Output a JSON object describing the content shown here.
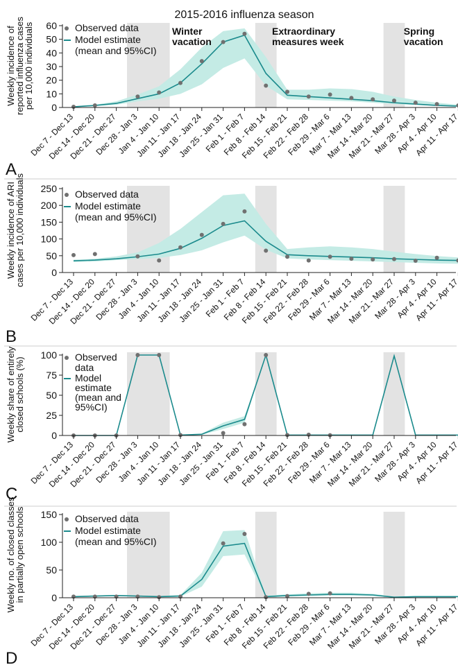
{
  "figure": {
    "title": "2015-2016 influenza season",
    "annotations": [
      {
        "lines": [
          "Winter",
          "vacation"
        ],
        "x_week": 5
      },
      {
        "lines": [
          "Extraordinary",
          "measures week"
        ],
        "x_week": 10
      },
      {
        "lines": [
          "Spring",
          "vacation"
        ],
        "x_week": 16
      }
    ],
    "shaded_weeks": [
      [
        3,
        4
      ],
      [
        9
      ],
      [
        15
      ]
    ],
    "colors": {
      "line": "#1a8a8c",
      "band": "#c4ebe5",
      "dots": "#707070",
      "shade": "#e3e3e3",
      "axis": "#222222",
      "divider": "#cccccc"
    }
  },
  "chart_data": [
    {
      "panel": "A",
      "type": "line",
      "ylabel": [
        "Weekly incidence of",
        "reported influenza cases",
        "per 10,000 individuals"
      ],
      "ylim": [
        0,
        60
      ],
      "yticks": [
        0,
        10,
        20,
        30,
        40,
        50,
        60
      ],
      "categories": [
        "Dec 7 - Dec 13",
        "Dec 14 - Dec 20",
        "Dec 21 - Dec 27",
        "Dec 28 - Jan 3",
        "Jan 4 - Jan 10",
        "Jan 11 - Jan 17",
        "Jan 18 - Jan 24",
        "Jan 25 - Jan 31",
        "Feb 1 - Feb 7",
        "Feb 8 - Feb 14",
        "Feb 15 - Feb 21",
        "Feb 22 - Feb 28",
        "Feb 29 - Mar 6",
        "Mar 7 - Mar 13",
        "Mar 14 - Mar 20",
        "Mar 21 - Mar 27",
        "Mar 28 - Apr 3",
        "Apr 4 - Apr 10",
        "Apr 11 - Apr 17"
      ],
      "observed": [
        0.5,
        1.5,
        null,
        8,
        11,
        18,
        34,
        48,
        54,
        16,
        11.5,
        8,
        9.5,
        7,
        6,
        5,
        3.5,
        2.5,
        1.5
      ],
      "model_mean": [
        0.5,
        1.5,
        3,
        6.5,
        10,
        18,
        32,
        48,
        53,
        25,
        9,
        8,
        7,
        6,
        5,
        3.5,
        2.5,
        1.5,
        1
      ],
      "ci_low": [
        0.3,
        1.0,
        2.0,
        4.5,
        6.5,
        10,
        17,
        29,
        36,
        16,
        6,
        5.5,
        5,
        4.5,
        3.5,
        2.5,
        1.8,
        1.2,
        0.7
      ],
      "ci_high": [
        0.8,
        2.0,
        4.5,
        9.5,
        15.5,
        28,
        44,
        56,
        58,
        37,
        13,
        13,
        14,
        13.5,
        11.5,
        8,
        5.5,
        3.5,
        2
      ],
      "legend": {
        "observed": [
          "Observed data"
        ],
        "model": [
          "Model estimate",
          "(mean and 95%CI)"
        ]
      }
    },
    {
      "panel": "B",
      "type": "line",
      "ylabel": [
        "Weekly incidence of ARI",
        "cases per 10,000 individuals"
      ],
      "ylim": [
        0,
        250
      ],
      "yticks": [
        0,
        50,
        100,
        150,
        200,
        250
      ],
      "categories": [
        "Dec 7 - Dec 13",
        "Dec 14 - Dec 20",
        "Dec 21 - Dec 27",
        "Dec 28 - Jan 3",
        "Jan 4 - Jan 10",
        "Jan 11 - Jan 17",
        "Jan 18 - Jan 24",
        "Jan 25 - Jan 31",
        "Feb 1 - Feb 7",
        "Feb 8 - Feb 14",
        "Feb 15 - Feb 21",
        "Feb 22 - Feb 28",
        "Feb 29 - Mar 6",
        "Mar 7 - Mar 13",
        "Mar 14 - Mar 20",
        "Mar 21 - Mar 27",
        "Mar 28 - Apr 3",
        "Apr 4 - Apr 10",
        "Apr 11 - Apr 17"
      ],
      "observed": [
        52,
        55,
        null,
        48,
        36,
        75,
        112,
        145,
        182,
        65,
        47,
        36,
        47,
        41,
        39,
        40,
        35,
        44,
        36
      ],
      "model_mean": [
        35,
        37,
        41,
        47,
        55,
        72,
        102,
        140,
        154,
        93,
        53,
        50,
        48,
        46,
        44,
        41,
        39,
        37,
        36
      ],
      "ci_low": [
        31,
        33,
        37,
        40,
        44,
        52,
        66,
        90,
        110,
        68,
        42,
        39,
        37,
        35,
        33,
        31,
        29,
        27,
        26
      ],
      "ci_high": [
        38,
        41,
        48,
        60,
        88,
        130,
        180,
        230,
        235,
        145,
        70,
        75,
        78,
        75,
        70,
        62,
        55,
        49,
        45
      ],
      "legend": {
        "observed": [
          "Observed data"
        ],
        "model": [
          "Model estimate",
          "(mean and 95%CI)"
        ]
      }
    },
    {
      "panel": "C",
      "type": "line",
      "ylabel": [
        "Weekly share of entirely",
        "closed schools (%)"
      ],
      "ylim": [
        0,
        100
      ],
      "yticks": [
        0,
        25,
        50,
        75,
        100
      ],
      "categories": [
        "Dec 7 - Dec 13",
        "Dec 14 - Dec 20",
        "Dec 21 - Dec 27",
        "Dec 28 - Jan 3",
        "Jan 4 - Jan 10",
        "Jan 11 - Jan 17",
        "Jan 18 - Jan 24",
        "Jan 25 - Jan 31",
        "Feb 1 - Feb 7",
        "Feb 8 - Feb 14",
        "Feb 15 - Feb 21",
        "Feb 22 - Feb 28",
        "Feb 29 - Mar 6",
        "Mar 7 - Mar 13",
        "Mar 14 - Mar 20",
        "Mar 21 - Mar 27",
        "Mar 28 - Apr 3",
        "Apr 4 - Apr 10",
        "Apr 11 - Apr 17"
      ],
      "observed": [
        0,
        0,
        0,
        100,
        100,
        0.5,
        null,
        3,
        14,
        100,
        0.5,
        1,
        0.3,
        null,
        null,
        null,
        null,
        null,
        null
      ],
      "model_mean": [
        0,
        0,
        0,
        100,
        100,
        0.5,
        1.5,
        12,
        20,
        100,
        0.5,
        0.5,
        0.5,
        0.5,
        0.5,
        99,
        0.5,
        0.5,
        0.5
      ],
      "ci_low": [
        0,
        0,
        0,
        100,
        100,
        0.3,
        1,
        8,
        16,
        100,
        0.3,
        0.3,
        0.3,
        0.3,
        0.3,
        99,
        0.3,
        0.3,
        0.3
      ],
      "ci_high": [
        0,
        0,
        0,
        100,
        100,
        1,
        2.5,
        16,
        24,
        100,
        1,
        1,
        1,
        1,
        1,
        99,
        1,
        1,
        1
      ],
      "legend": {
        "observed": [
          "Observed",
          "data"
        ],
        "model": [
          "Model",
          "estimate",
          "(mean and",
          "95%CI)"
        ]
      }
    },
    {
      "panel": "D",
      "type": "line",
      "ylabel": [
        "Weekly no. of closed classes",
        "in partially open schools"
      ],
      "ylim": [
        0,
        150
      ],
      "yticks": [
        0,
        50,
        100,
        150
      ],
      "categories": [
        "Dec 7 - Dec 13",
        "Dec 14 - Dec 20",
        "Dec 21 - Dec 27",
        "Dec 28 - Jan 3",
        "Jan 4 - Jan 10",
        "Jan 11 - Jan 17",
        "Jan 18 - Jan 24",
        "Jan 25 - Jan 31",
        "Feb 1 - Feb 7",
        "Feb 8 - Feb 14",
        "Feb 15 - Feb 21",
        "Feb 22 - Feb 28",
        "Feb 29 - Mar 6",
        "Mar 7 - Mar 13",
        "Mar 14 - Mar 20",
        "Mar 21 - Mar 27",
        "Mar 28 - Apr 3",
        "Apr 4 - Apr 10",
        "Apr 11 - Apr 17"
      ],
      "observed": [
        2,
        2,
        2,
        2,
        1,
        2,
        null,
        98,
        115,
        1,
        3,
        7,
        8,
        null,
        null,
        null,
        null,
        null,
        null
      ],
      "model_mean": [
        2,
        3,
        4,
        3,
        2,
        3,
        33,
        93,
        98,
        2,
        4,
        5,
        6,
        6,
        5,
        1,
        2,
        2,
        2
      ],
      "ci_low": [
        1,
        2,
        3,
        2,
        1,
        2,
        20,
        75,
        78,
        1,
        2,
        3,
        4,
        4,
        3,
        0.5,
        1,
        1,
        1
      ],
      "ci_high": [
        3,
        4,
        5,
        4,
        3,
        5,
        45,
        120,
        122,
        4,
        6,
        8,
        9,
        9,
        7,
        2,
        3,
        3,
        3
      ],
      "legend": {
        "observed": [
          "Observed data"
        ],
        "model": [
          "Model estimate",
          "(mean and 95%CI)"
        ]
      }
    }
  ]
}
